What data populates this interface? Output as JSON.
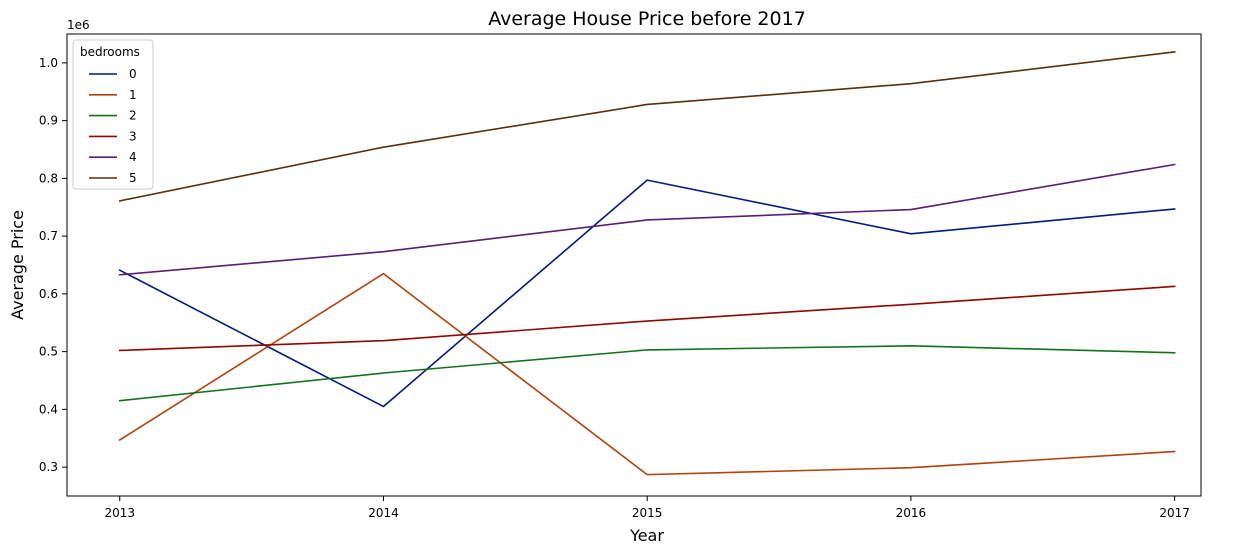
{
  "chart_data": {
    "type": "line",
    "title": "Average House Price before 2017",
    "xlabel": "Year",
    "ylabel": "Average Price",
    "y_offset_label": "1e6",
    "x": [
      2013,
      2014,
      2015,
      2016,
      2017
    ],
    "x_tick_labels": [
      "2013",
      "2014",
      "2015",
      "2016",
      "2017"
    ],
    "xlim": [
      2012.8,
      2017.1
    ],
    "ylim": [
      250000,
      1050000
    ],
    "y_ticks": [
      300000,
      400000,
      500000,
      600000,
      700000,
      800000,
      900000,
      1000000
    ],
    "y_tick_labels": [
      "0.3",
      "0.4",
      "0.5",
      "0.6",
      "0.7",
      "0.8",
      "0.9",
      "1.0"
    ],
    "grid": false,
    "legend": {
      "title": "bedrooms",
      "placement": "top-left"
    },
    "series": [
      {
        "name": "0",
        "color": "#001c7f",
        "values": [
          641000,
          405000,
          797000,
          704000,
          747000
        ]
      },
      {
        "name": "1",
        "color": "#b1400d",
        "values": [
          347000,
          635000,
          287000,
          299000,
          327000
        ]
      },
      {
        "name": "2",
        "color": "#12711c",
        "values": [
          415000,
          463000,
          503000,
          510000,
          498000
        ]
      },
      {
        "name": "3",
        "color": "#8c0800",
        "values": [
          502000,
          519000,
          553000,
          582000,
          613000
        ]
      },
      {
        "name": "4",
        "color": "#591e71",
        "values": [
          633000,
          673000,
          728000,
          746000,
          824000
        ]
      },
      {
        "name": "5",
        "color": "#592f0d",
        "values": [
          761000,
          854000,
          928000,
          964000,
          1019000
        ]
      }
    ]
  }
}
